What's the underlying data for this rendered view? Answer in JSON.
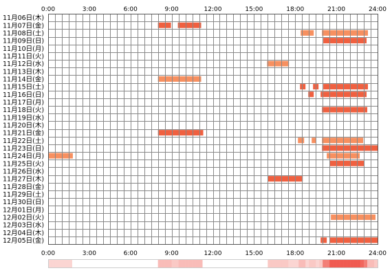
{
  "chart_data": {
    "type": "timeline",
    "x_ticks": [
      "0:00",
      "3:00",
      "6:00",
      "9:00",
      "12:00",
      "15:00",
      "18:00",
      "21:00",
      "24:00"
    ],
    "x_range_hours": [
      0,
      24
    ],
    "grid": true,
    "colors": {
      "segment_dark": "#f06040",
      "segment_light": "#f79060",
      "grid": "#888888",
      "frame": "#555555",
      "density_base": "#ffffff",
      "density_max": "#f05a50"
    },
    "rows": [
      {
        "label": "11月06日(木)",
        "segments": []
      },
      {
        "label": "11月07日(金)",
        "segments": [
          {
            "start": 8.0,
            "end": 8.95,
            "tone": "dark"
          },
          {
            "start": 9.45,
            "end": 11.15,
            "tone": "dark"
          }
        ]
      },
      {
        "label": "11月08日(土)",
        "segments": [
          {
            "start": 18.4,
            "end": 19.35,
            "tone": "light"
          },
          {
            "start": 19.95,
            "end": 23.3,
            "tone": "light"
          }
        ]
      },
      {
        "label": "11月09日(日)",
        "segments": [
          {
            "start": 20.05,
            "end": 23.2,
            "tone": "dark"
          }
        ]
      },
      {
        "label": "11月10日(月)",
        "segments": []
      },
      {
        "label": "11月11日(火)",
        "segments": []
      },
      {
        "label": "11月12日(水)",
        "segments": [
          {
            "start": 15.95,
            "end": 17.55,
            "tone": "light"
          }
        ]
      },
      {
        "label": "11月13日(木)",
        "segments": []
      },
      {
        "label": "11月14日(金)",
        "segments": [
          {
            "start": 8.0,
            "end": 11.15,
            "tone": "light"
          }
        ]
      },
      {
        "label": "11月15日(土)",
        "segments": [
          {
            "start": 18.35,
            "end": 18.75,
            "tone": "dark"
          },
          {
            "start": 19.3,
            "end": 19.7,
            "tone": "dark"
          },
          {
            "start": 20.05,
            "end": 23.3,
            "tone": "dark"
          }
        ]
      },
      {
        "label": "11月16日(日)",
        "segments": [
          {
            "start": 18.95,
            "end": 19.35,
            "tone": "dark"
          },
          {
            "start": 19.85,
            "end": 23.2,
            "tone": "dark"
          }
        ]
      },
      {
        "label": "11月17日(月)",
        "segments": []
      },
      {
        "label": "11月18日(火)",
        "segments": [
          {
            "start": 19.95,
            "end": 23.25,
            "tone": "dark"
          }
        ]
      },
      {
        "label": "11月19日(水)",
        "segments": []
      },
      {
        "label": "11月20日(木)",
        "segments": []
      },
      {
        "label": "11月21日(金)",
        "segments": [
          {
            "start": 8.0,
            "end": 11.3,
            "tone": "dark"
          }
        ]
      },
      {
        "label": "11月22日(土)",
        "segments": [
          {
            "start": 18.2,
            "end": 18.65,
            "tone": "light"
          },
          {
            "start": 19.2,
            "end": 19.5,
            "tone": "light"
          },
          {
            "start": 19.95,
            "end": 22.95,
            "tone": "light"
          }
        ]
      },
      {
        "label": "11月23日(日)",
        "segments": [
          {
            "start": 19.95,
            "end": 24.0,
            "tone": "dark"
          }
        ]
      },
      {
        "label": "11月24日(月)",
        "segments": [
          {
            "start": 0.0,
            "end": 1.8,
            "tone": "light"
          },
          {
            "start": 20.3,
            "end": 22.7,
            "tone": "light"
          }
        ]
      },
      {
        "label": "11月25日(火)",
        "segments": [
          {
            "start": 20.5,
            "end": 23.05,
            "tone": "dark"
          }
        ]
      },
      {
        "label": "11月26日(水)",
        "segments": []
      },
      {
        "label": "11月27日(木)",
        "segments": [
          {
            "start": 16.0,
            "end": 18.55,
            "tone": "dark"
          }
        ]
      },
      {
        "label": "11月28日(金)",
        "segments": []
      },
      {
        "label": "11月29日(土)",
        "segments": []
      },
      {
        "label": "11月30日(日)",
        "segments": []
      },
      {
        "label": "12月01日(月)",
        "segments": []
      },
      {
        "label": "12月02日(火)",
        "segments": [
          {
            "start": 20.6,
            "end": 23.85,
            "tone": "light"
          }
        ]
      },
      {
        "label": "12月03日(水)",
        "segments": []
      },
      {
        "label": "12月04日(木)",
        "segments": []
      },
      {
        "label": "12月05日(金)",
        "segments": [
          {
            "start": 19.85,
            "end": 20.3,
            "tone": "dark"
          },
          {
            "start": 20.5,
            "end": 24.0,
            "tone": "dark"
          }
        ]
      }
    ],
    "density_strip": {
      "present": true
    }
  }
}
